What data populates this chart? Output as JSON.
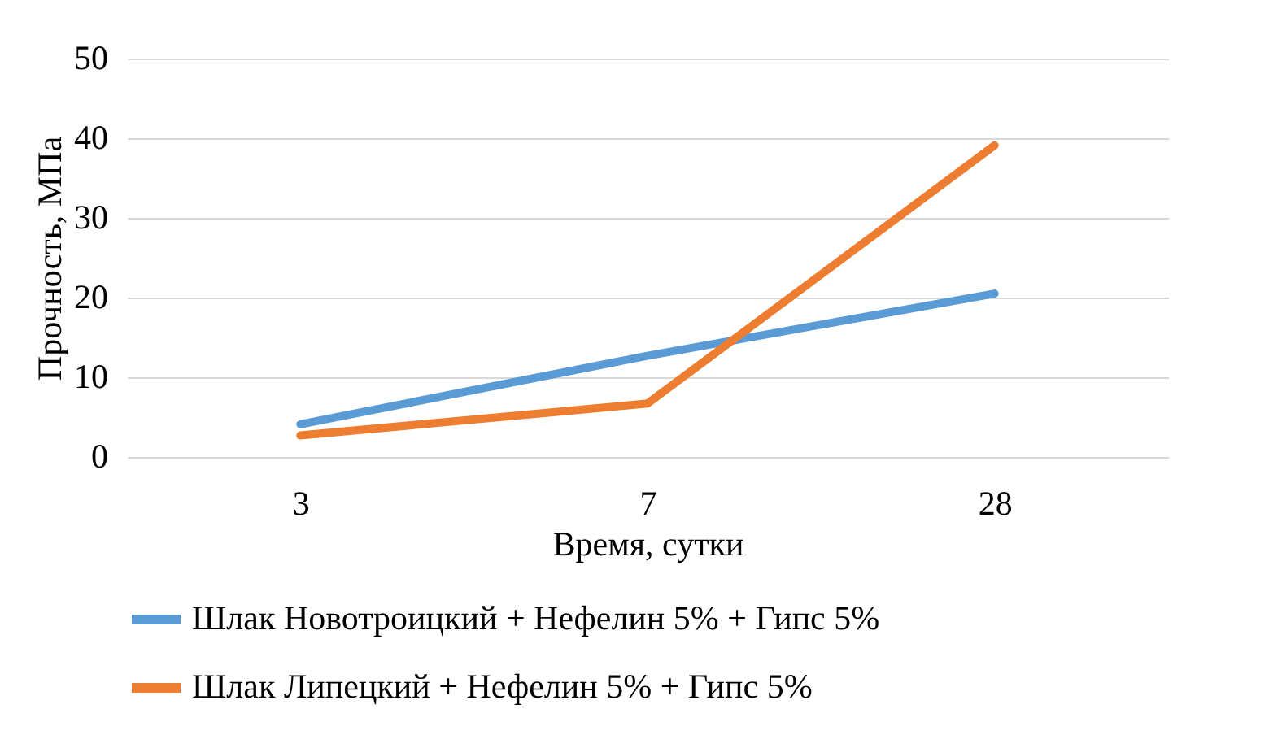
{
  "chart_data": {
    "type": "line",
    "xlabel": "Время, сутки",
    "ylabel": "Прочность, МПа",
    "categories": [
      "3",
      "7",
      "28"
    ],
    "series": [
      {
        "name": "Шлак Новотроицкий  + Нефелин 5% + Гипс 5%",
        "color": "#5b9bd5",
        "values": [
          4.1,
          12.7,
          20.5
        ]
      },
      {
        "name": "Шлак Липецкий + Нефелин 5% + Гипс 5%",
        "color": "#ed7d31",
        "values": [
          2.7,
          6.7,
          39.1
        ]
      }
    ],
    "ylim": [
      0,
      50
    ],
    "yticks": [
      0,
      10,
      20,
      30,
      40,
      50
    ],
    "grid": "y",
    "legend": "bottom",
    "marker": "none",
    "line_style": "solid"
  }
}
